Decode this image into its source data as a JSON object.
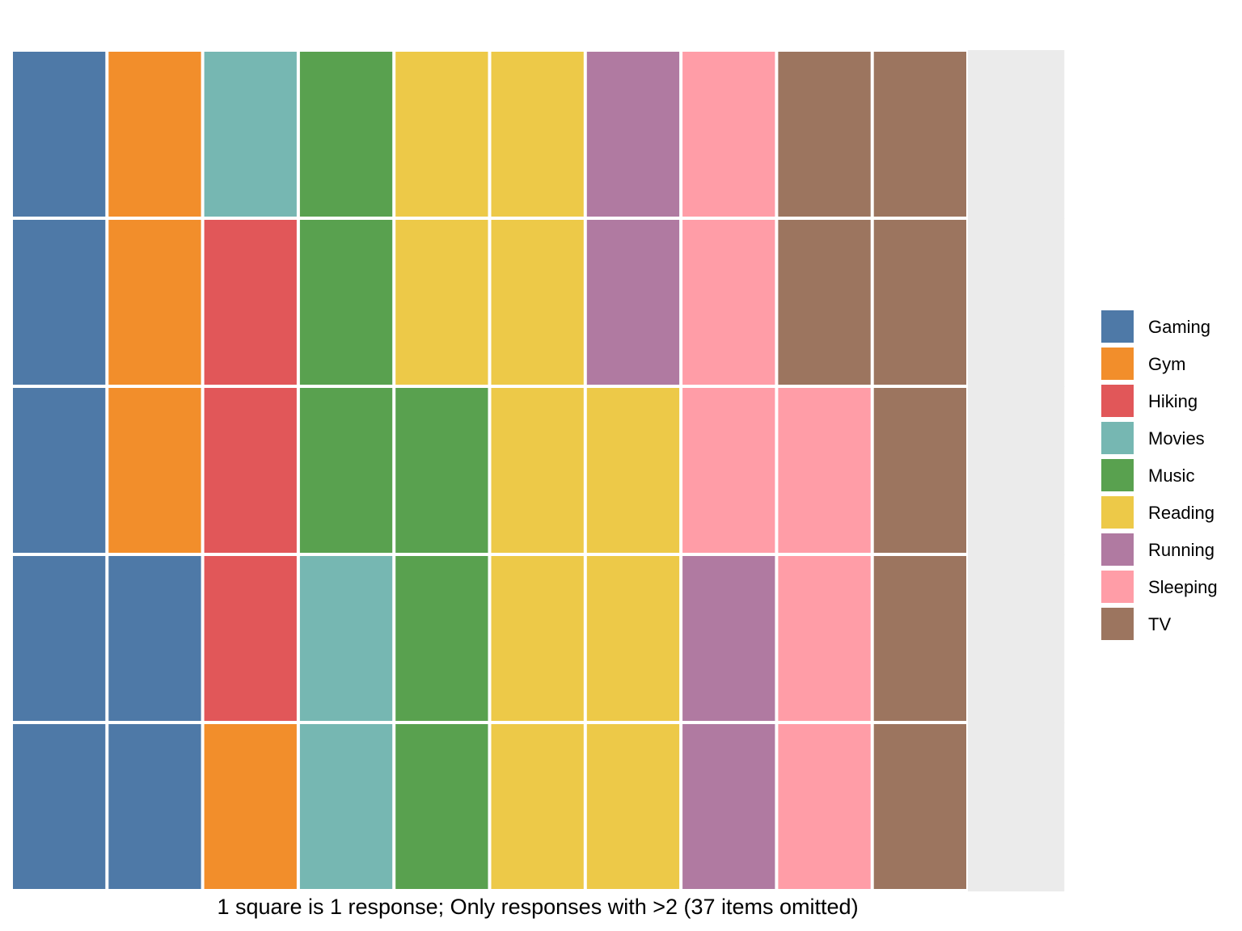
{
  "chart_data": {
    "type": "waffle",
    "title": "",
    "caption": "1 square is 1 response; Only responses with >2 (37 items omitted)",
    "rows": 5,
    "columns": 11,
    "fill_order": "column-major, bottom-to-top, left-to-right",
    "categories": [
      "Gaming",
      "Gym",
      "Hiking",
      "Movies",
      "Music",
      "Reading",
      "Running",
      "Sleeping",
      "TV"
    ],
    "values": [
      7,
      4,
      3,
      3,
      6,
      10,
      4,
      6,
      7
    ],
    "colors": {
      "Gaming": "#4E79A7",
      "Gym": "#F28E2B",
      "Hiking": "#E15759",
      "Movies": "#76B7B2",
      "Music": "#59A14F",
      "Reading": "#EDC948",
      "Running": "#B07AA1",
      "Sleeping": "#FF9DA7",
      "TV": "#9C755F"
    },
    "empty_color": "#EBEBEB",
    "legend": {
      "position": "right",
      "items": [
        "Gaming",
        "Gym",
        "Hiking",
        "Movies",
        "Music",
        "Reading",
        "Running",
        "Sleeping",
        "TV"
      ]
    }
  }
}
